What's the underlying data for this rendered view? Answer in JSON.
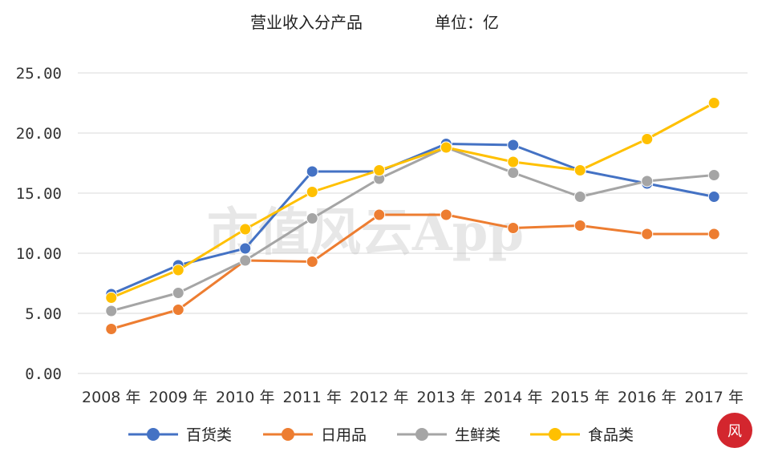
{
  "chart_data": {
    "type": "line",
    "title": "营业收入分产品",
    "unit_label": "单位：亿",
    "categories": [
      "2008 年",
      "2009 年",
      "2010 年",
      "2011 年",
      "2012 年",
      "2013 年",
      "2014 年",
      "2015 年",
      "2016 年",
      "2017 年"
    ],
    "ylim": [
      0,
      25
    ],
    "yticks": [
      "0.00",
      "5.00",
      "10.00",
      "15.00",
      "20.00",
      "25.00"
    ],
    "ytick_values": [
      0,
      5,
      10,
      15,
      20,
      25
    ],
    "grid": true,
    "legend_position": "bottom",
    "series": [
      {
        "name": "百货类",
        "color": "#4472c4",
        "values": [
          6.6,
          9.0,
          10.4,
          16.8,
          16.8,
          19.1,
          19.0,
          16.9,
          15.8,
          14.7
        ]
      },
      {
        "name": "日用品",
        "color": "#ed7d31",
        "values": [
          3.7,
          5.3,
          9.4,
          9.3,
          13.2,
          13.2,
          12.1,
          12.3,
          11.6,
          11.6
        ]
      },
      {
        "name": "生鲜类",
        "color": "#a5a5a5",
        "values": [
          5.2,
          6.7,
          9.4,
          12.9,
          16.2,
          18.8,
          16.7,
          14.7,
          16.0,
          16.5
        ]
      },
      {
        "name": "食品类",
        "color": "#ffc000",
        "values": [
          6.3,
          8.6,
          12.0,
          15.1,
          16.9,
          18.8,
          17.6,
          16.9,
          19.5,
          22.5
        ]
      }
    ],
    "watermark": "市值风云App",
    "logo_text": "风"
  }
}
